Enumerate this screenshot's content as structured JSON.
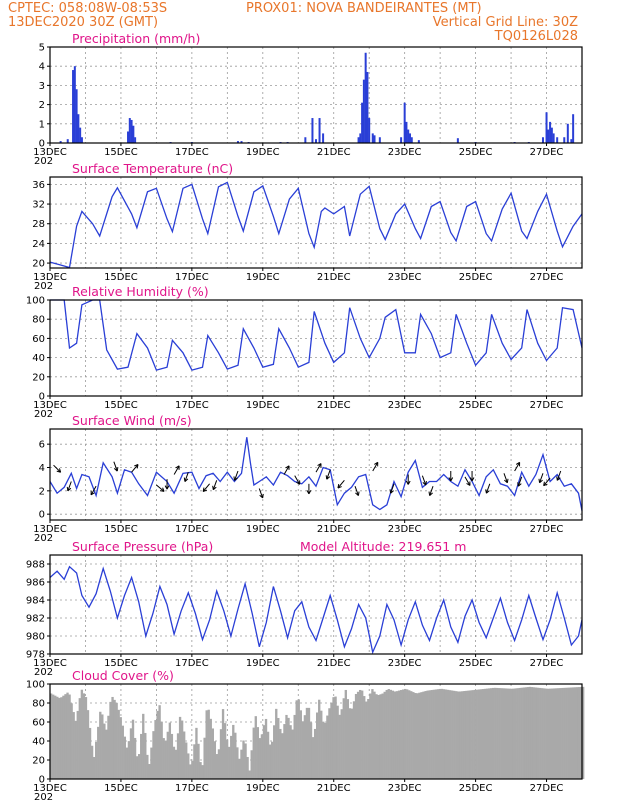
{
  "header": {
    "line1_left": "CPTEC:   058:08W-08:53S",
    "line1_right": "PROX01: NOVA BANDEIRANTES (MT)",
    "line2_left": "13DEC2020 30Z (GMT)",
    "line2_right": "Vertical Grid Line: 30Z",
    "line3_right": "TQ0126L028"
  },
  "colors": {
    "header": "#e8762b",
    "titles": "#e0158a",
    "series": "#2a3fd6",
    "cloud": "#a9a9a9"
  },
  "x_labels": [
    "13DEC",
    "15DEC",
    "17DEC",
    "19DEC",
    "21DEC",
    "23DEC",
    "25DEC",
    "27DEC"
  ],
  "x_year_stub": "202",
  "chart_data": [
    {
      "type": "bar",
      "title": "Precipitation (mm/h)",
      "ylim": [
        0,
        5
      ],
      "yticks": [
        0,
        1,
        2,
        3,
        4,
        5
      ],
      "xlim_days": [
        13,
        28
      ],
      "grid": true,
      "x": [
        13.3,
        13.5,
        13.65,
        13.7,
        13.75,
        13.8,
        13.85,
        13.9,
        15.2,
        15.25,
        15.3,
        15.35,
        15.4,
        16.4,
        17.0,
        18.3,
        18.4,
        18.6,
        19.5,
        19.7,
        20.2,
        20.4,
        20.5,
        20.6,
        20.7,
        21.7,
        21.75,
        21.8,
        21.85,
        21.9,
        21.95,
        22.0,
        22.1,
        22.15,
        22.3,
        22.9,
        23.0,
        23.05,
        23.1,
        23.15,
        23.2,
        23.4,
        24.5,
        25.0,
        26.1,
        26.5,
        26.9,
        27.0,
        27.05,
        27.1,
        27.15,
        27.2,
        27.3,
        27.5,
        27.6,
        27.7,
        27.75
      ],
      "values": [
        0.1,
        0.2,
        3.8,
        4.0,
        2.8,
        1.5,
        0.8,
        0.3,
        0.6,
        1.3,
        1.2,
        0.9,
        0.3,
        0.05,
        0.05,
        0.1,
        0.1,
        0.05,
        0.05,
        0.05,
        0.3,
        1.3,
        0.2,
        1.3,
        0.5,
        0.3,
        0.5,
        2.1,
        3.3,
        4.7,
        3.7,
        1.3,
        0.5,
        0.4,
        0.3,
        0.3,
        2.1,
        1.1,
        0.7,
        0.5,
        0.3,
        0.15,
        0.25,
        0.05,
        0.05,
        0.05,
        0.3,
        1.6,
        0.7,
        1.1,
        0.8,
        0.5,
        0.3,
        0.3,
        1.0,
        0.2,
        1.5
      ]
    },
    {
      "type": "line",
      "title": "Surface Temperature (nC)",
      "ylim": [
        19,
        37.5
      ],
      "yticks": [
        20,
        24,
        28,
        32,
        36
      ],
      "xlim_days": [
        13,
        28
      ],
      "grid": true,
      "x": [
        13.0,
        13.3,
        13.55,
        13.75,
        13.9,
        14.2,
        14.4,
        14.75,
        14.9,
        15.3,
        15.45,
        15.75,
        16.0,
        16.3,
        16.45,
        16.75,
        17.0,
        17.3,
        17.45,
        17.75,
        18.0,
        18.3,
        18.45,
        18.75,
        19.0,
        19.3,
        19.45,
        19.75,
        20.0,
        20.3,
        20.45,
        20.65,
        20.75,
        21.0,
        21.3,
        21.45,
        21.75,
        22.0,
        22.3,
        22.45,
        22.75,
        23.0,
        23.3,
        23.45,
        23.75,
        24.0,
        24.3,
        24.45,
        24.75,
        25.0,
        25.3,
        25.45,
        25.75,
        26.0,
        26.3,
        26.45,
        26.75,
        27.0,
        27.3,
        27.45,
        27.75,
        28.0
      ],
      "values": [
        20.2,
        19.6,
        19.1,
        27.5,
        30.5,
        28.0,
        25.5,
        33.5,
        35.3,
        30.0,
        27.2,
        34.5,
        35.2,
        29.0,
        26.4,
        35.2,
        36.0,
        29.0,
        26.0,
        35.5,
        36.4,
        29.5,
        26.5,
        34.5,
        35.7,
        29.5,
        26.0,
        33.0,
        35.2,
        26.0,
        23.2,
        30.5,
        31.2,
        30.0,
        31.5,
        25.5,
        34.0,
        35.6,
        27.0,
        24.8,
        30.0,
        32.0,
        27.0,
        25.0,
        31.5,
        32.5,
        26.2,
        24.5,
        31.5,
        32.5,
        26.0,
        24.5,
        31.0,
        34.2,
        26.5,
        25.0,
        30.5,
        34.0,
        26.5,
        23.3,
        27.5,
        30.0
      ]
    },
    {
      "type": "line",
      "title": "Relative Humidity (%)",
      "ylim": [
        0,
        100
      ],
      "yticks": [
        0,
        20,
        40,
        60,
        80,
        100
      ],
      "xlim_days": [
        13,
        28
      ],
      "grid": true,
      "x": [
        13.0,
        13.4,
        13.55,
        13.75,
        13.9,
        14.2,
        14.4,
        14.6,
        14.9,
        15.2,
        15.45,
        15.75,
        16.0,
        16.3,
        16.45,
        16.75,
        17.0,
        17.3,
        17.45,
        17.75,
        18.0,
        18.3,
        18.45,
        18.75,
        19.0,
        19.3,
        19.45,
        19.75,
        20.0,
        20.3,
        20.45,
        20.75,
        21.0,
        21.3,
        21.45,
        21.75,
        22.0,
        22.3,
        22.45,
        22.75,
        23.0,
        23.3,
        23.45,
        23.75,
        24.0,
        24.3,
        24.45,
        24.75,
        25.0,
        25.3,
        25.45,
        25.75,
        26.0,
        26.3,
        26.45,
        26.75,
        27.0,
        27.3,
        27.45,
        27.75,
        28.0
      ],
      "values": [
        100,
        100,
        50,
        55,
        95,
        100,
        100,
        48,
        28,
        30,
        65,
        50,
        27,
        30,
        58,
        45,
        27,
        30,
        63,
        45,
        28,
        32,
        70,
        50,
        30,
        33,
        70,
        50,
        30,
        35,
        88,
        55,
        35,
        45,
        92,
        60,
        40,
        60,
        82,
        90,
        45,
        45,
        85,
        65,
        40,
        45,
        85,
        55,
        32,
        45,
        85,
        55,
        38,
        50,
        90,
        55,
        37,
        50,
        92,
        90,
        50
      ]
    },
    {
      "type": "line",
      "title": "Surface Wind (m/s)",
      "ylim": [
        -0.5,
        7.3
      ],
      "yticks": [
        0,
        2,
        4,
        6
      ],
      "xlim_days": [
        13,
        28
      ],
      "grid": true,
      "x": [
        13.0,
        13.2,
        13.4,
        13.6,
        13.75,
        13.9,
        14.1,
        14.3,
        14.5,
        14.75,
        14.9,
        15.1,
        15.3,
        15.5,
        15.75,
        16.0,
        16.3,
        16.5,
        16.75,
        17.0,
        17.2,
        17.4,
        17.6,
        17.8,
        18.0,
        18.2,
        18.4,
        18.55,
        18.65,
        18.75,
        18.9,
        19.1,
        19.3,
        19.5,
        19.7,
        19.9,
        20.1,
        20.3,
        20.5,
        20.7,
        20.9,
        21.1,
        21.3,
        21.5,
        21.7,
        21.9,
        22.1,
        22.3,
        22.5,
        22.7,
        22.9,
        23.1,
        23.3,
        23.5,
        23.7,
        23.9,
        24.1,
        24.3,
        24.5,
        24.7,
        24.9,
        25.1,
        25.3,
        25.5,
        25.7,
        25.9,
        26.1,
        26.3,
        26.5,
        26.7,
        26.9,
        27.1,
        27.3,
        27.5,
        27.7,
        27.9,
        28.0
      ],
      "values": [
        2.8,
        1.8,
        2.3,
        3.5,
        2.2,
        3.4,
        3.2,
        1.6,
        4.4,
        3.2,
        1.8,
        3.8,
        3.6,
        2.6,
        1.6,
        3.6,
        2.8,
        1.8,
        3.5,
        3.6,
        2.2,
        3.3,
        3.5,
        2.8,
        3.6,
        2.8,
        3.5,
        6.6,
        4.4,
        2.5,
        2.8,
        3.2,
        2.5,
        3.6,
        3.3,
        2.8,
        2.6,
        3.2,
        2.4,
        4.0,
        3.8,
        0.8,
        1.8,
        2.3,
        3.2,
        3.4,
        0.8,
        0.4,
        0.8,
        2.8,
        1.5,
        3.6,
        4.6,
        2.3,
        2.8,
        2.8,
        3.4,
        2.8,
        2.4,
        3.8,
        2.8,
        1.6,
        3.2,
        3.8,
        2.6,
        2.4,
        1.6,
        3.6,
        2.4,
        3.4,
        5.1,
        2.8,
        3.4,
        2.4,
        2.6,
        1.8,
        0.3
      ]
    },
    {
      "type": "line",
      "title": "Surface Pressure (hPa)",
      "subtitle": "Model Altitude: 219.651 m",
      "ylim": [
        978,
        989
      ],
      "yticks": [
        978,
        980,
        982,
        984,
        986,
        988
      ],
      "xlim_days": [
        13,
        28
      ],
      "grid": true,
      "x": [
        13.0,
        13.2,
        13.4,
        13.55,
        13.75,
        13.9,
        14.1,
        14.3,
        14.5,
        14.7,
        14.9,
        15.1,
        15.3,
        15.5,
        15.7,
        15.9,
        16.1,
        16.3,
        16.5,
        16.7,
        16.9,
        17.1,
        17.3,
        17.5,
        17.7,
        17.9,
        18.1,
        18.3,
        18.5,
        18.7,
        18.9,
        19.1,
        19.3,
        19.5,
        19.7,
        19.9,
        20.1,
        20.3,
        20.5,
        20.7,
        20.9,
        21.1,
        21.3,
        21.5,
        21.7,
        21.9,
        22.1,
        22.3,
        22.5,
        22.7,
        22.9,
        23.1,
        23.3,
        23.5,
        23.7,
        23.9,
        24.1,
        24.3,
        24.5,
        24.7,
        24.9,
        25.1,
        25.3,
        25.5,
        25.7,
        25.9,
        26.1,
        26.3,
        26.5,
        26.7,
        26.9,
        27.1,
        27.3,
        27.5,
        27.7,
        27.9,
        28.0
      ],
      "values": [
        986.5,
        987.2,
        986.3,
        987.7,
        987.0,
        984.5,
        983.2,
        984.7,
        987.5,
        985.0,
        982.0,
        984.5,
        986.5,
        983.8,
        980.0,
        982.5,
        985.5,
        983.5,
        980.2,
        982.8,
        984.8,
        982.5,
        979.6,
        981.8,
        985.0,
        982.8,
        980.0,
        983.0,
        985.8,
        982.5,
        978.8,
        981.5,
        985.5,
        982.8,
        979.8,
        982.8,
        983.8,
        981.0,
        979.5,
        982.0,
        984.5,
        981.8,
        978.8,
        980.8,
        983.5,
        982.0,
        978.2,
        980.0,
        983.5,
        981.8,
        979.0,
        981.8,
        983.8,
        981.2,
        979.5,
        982.0,
        984.0,
        981.0,
        979.3,
        982.2,
        984.0,
        981.5,
        979.8,
        982.0,
        984.2,
        981.5,
        979.5,
        981.8,
        984.5,
        982.0,
        979.6,
        981.8,
        984.8,
        982.0,
        979.0,
        980.0,
        981.8
      ]
    },
    {
      "type": "area",
      "title": "Cloud Cover (%)",
      "ylim": [
        0,
        100
      ],
      "yticks": [
        0,
        20,
        40,
        60,
        80,
        100
      ],
      "xlim_days": [
        13,
        28
      ],
      "grid": true,
      "x": [
        13.0,
        13.25,
        13.5,
        13.7,
        13.85,
        14.0,
        14.2,
        14.4,
        14.55,
        14.7,
        14.85,
        15.0,
        15.15,
        15.3,
        15.45,
        15.6,
        15.75,
        15.9,
        16.05,
        16.2,
        16.35,
        16.5,
        16.65,
        16.8,
        16.95,
        17.1,
        17.25,
        17.4,
        17.55,
        17.7,
        17.85,
        18.0,
        18.15,
        18.3,
        18.45,
        18.6,
        18.75,
        18.9,
        19.05,
        19.2,
        19.35,
        19.5,
        19.65,
        19.8,
        19.95,
        20.1,
        20.25,
        20.4,
        20.55,
        20.7,
        20.85,
        21.0,
        21.15,
        21.3,
        21.45,
        21.6,
        21.75,
        21.9,
        22.05,
        22.2,
        22.35,
        22.5,
        22.7,
        23.0,
        23.3,
        23.6,
        24.0,
        24.5,
        25.0,
        25.5,
        26.0,
        26.5,
        27.0,
        27.5,
        28.0
      ],
      "values": [
        90,
        85,
        92,
        60,
        95,
        85,
        20,
        75,
        50,
        88,
        80,
        60,
        30,
        65,
        15,
        70,
        10,
        55,
        80,
        35,
        60,
        25,
        70,
        40,
        10,
        55,
        5,
        80,
        55,
        20,
        75,
        30,
        60,
        20,
        45,
        8,
        70,
        40,
        65,
        30,
        75,
        45,
        70,
        50,
        90,
        60,
        80,
        40,
        85,
        55,
        75,
        90,
        65,
        95,
        70,
        90,
        95,
        80,
        95,
        88,
        90,
        95,
        92,
        95,
        90,
        93,
        95,
        92,
        94,
        96,
        95,
        97,
        95,
        96,
        97
      ]
    }
  ],
  "wind_arrows": {
    "x": [
      13.1,
      13.6,
      14.3,
      14.8,
      15.3,
      16.0,
      16.3,
      16.5,
      16.9,
      17.5,
      17.7,
      18.3,
      18.9,
      19.6,
      19.9,
      20.3,
      20.5,
      20.9,
      21.3,
      21.6,
      22.1,
      22.7,
      23.1,
      23.5,
      23.8,
      24.3,
      24.7,
      24.9,
      25.4,
      25.8,
      26.1,
      26.3,
      26.9,
      27.1,
      27.4
    ],
    "speeds": [
      4.2,
      2.8,
      2.4,
      4.5,
      3.6,
      2.5,
      3.0,
      3.4,
      3.6,
      2.6,
      2.9,
      3.7,
      2.2,
      3.4,
      3.3,
      2.6,
      3.6,
      3.8,
      2.9,
      2.4,
      3.7,
      2.6,
      3.4,
      3.3,
      2.4,
      3.7,
      3.2,
      3.7,
      2.6,
      3.5,
      3.7,
      3.2,
      3.5,
      3.1,
      3.7
    ],
    "dirs_deg": [
      135,
      200,
      210,
      160,
      40,
      130,
      180,
      30,
      200,
      220,
      200,
      200,
      160,
      30,
      150,
      180,
      30,
      200,
      220,
      160,
      30,
      200,
      180,
      160,
      200,
      180,
      150,
      180,
      200,
      160,
      30,
      200,
      200,
      220,
      200
    ]
  }
}
